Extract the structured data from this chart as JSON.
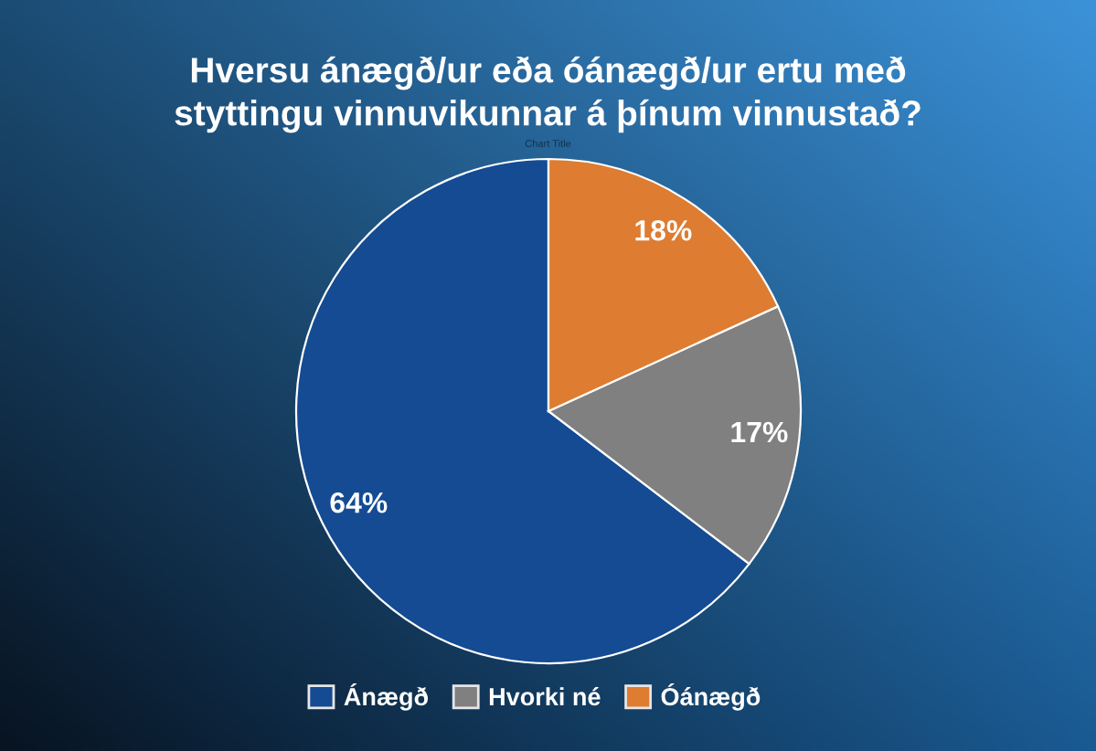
{
  "chart_data": {
    "type": "pie",
    "title": "Hversu ánægð/ur eða óánægð/ur ertu með styttingu vinnuvikunnar á þínum vinnustað?",
    "categories": [
      "Ánægð",
      "Hvorki né",
      "Óánægð"
    ],
    "values": [
      64,
      17,
      18
    ],
    "colors": [
      "#144b93",
      "#808080",
      "#de7c31"
    ],
    "value_labels": [
      "64%",
      "17%",
      "18%"
    ],
    "legend": "bottom",
    "annotations": [
      "Chart Title"
    ]
  }
}
